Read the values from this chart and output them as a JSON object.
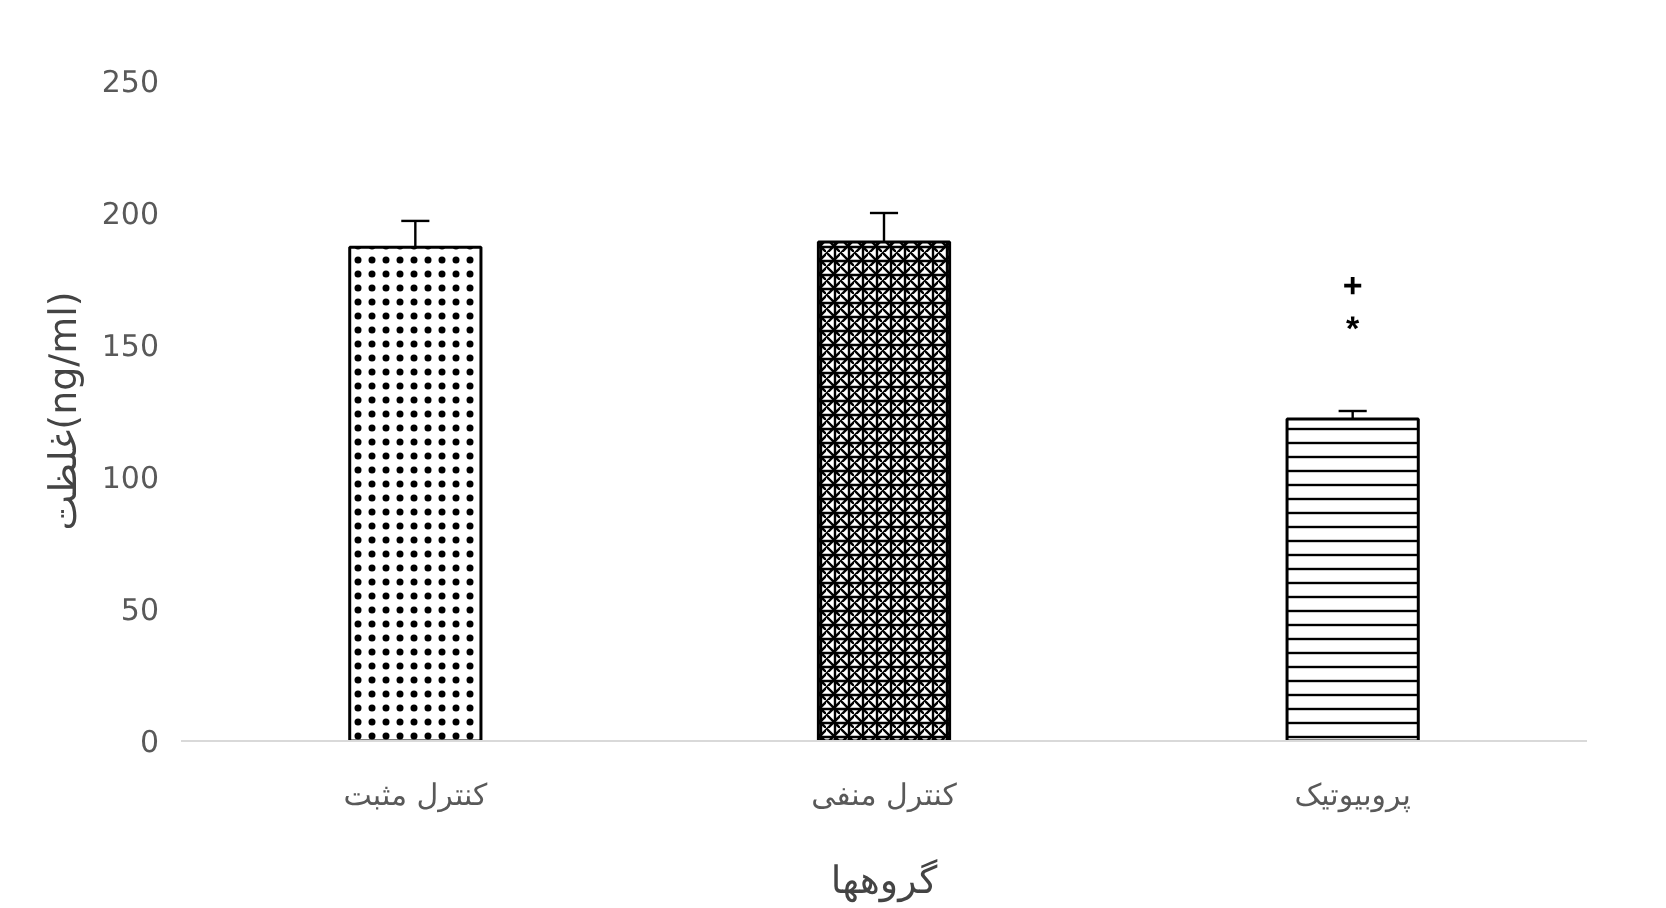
{
  "chart_data": {
    "type": "bar",
    "xlabel": "گروهها",
    "ylabel": "غلظت(ng/ml)",
    "categories": [
      "کنترل مثبت",
      "کنترل منفی",
      "پروبیوتیک"
    ],
    "values": [
      187,
      189,
      122
    ],
    "errors": [
      10,
      11,
      3
    ],
    "color": "#000000",
    "ylim": [
      0,
      250
    ],
    "yticks": [
      0,
      50,
      100,
      150,
      200,
      250
    ],
    "grid": false,
    "annotations": [
      "+",
      "*"
    ]
  }
}
